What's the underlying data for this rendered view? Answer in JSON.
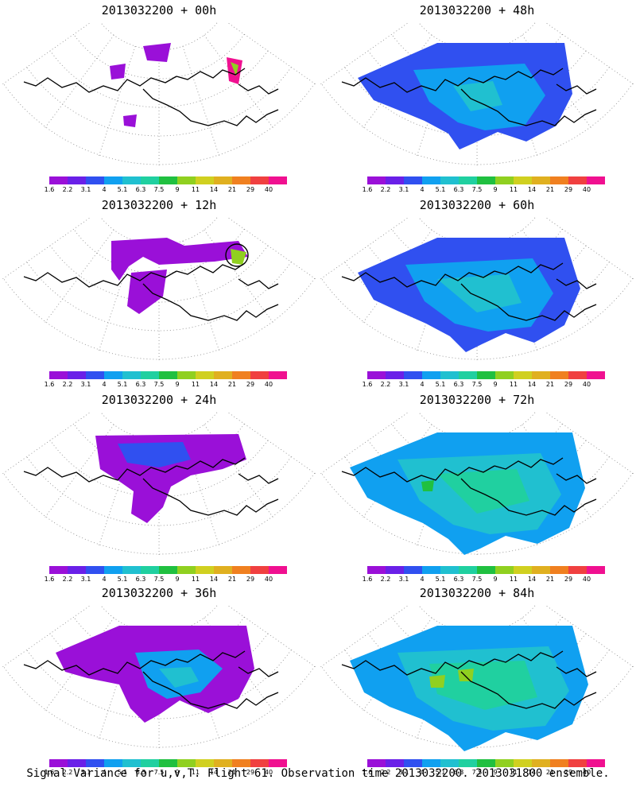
{
  "colorbar": {
    "labels": [
      "1.6",
      "2.2",
      "3.1",
      "4",
      "5.1",
      "6.3",
      "7.5",
      "9",
      "11",
      "14",
      "21",
      "29",
      "40"
    ],
    "colors": [
      "#9a10d8",
      "#6a20e8",
      "#3050f0",
      "#10a0f0",
      "#20c0d0",
      "#20d0a0",
      "#20c040",
      "#90d020",
      "#d0d020",
      "#e0b020",
      "#f08020",
      "#f04040",
      "#f01090"
    ]
  },
  "panels": [
    {
      "title": "2013032200 + 00h",
      "lead_hours": 0
    },
    {
      "title": "2013032200 + 48h",
      "lead_hours": 48
    },
    {
      "title": "2013032200 + 12h",
      "lead_hours": 12
    },
    {
      "title": "2013032200 + 60h",
      "lead_hours": 60
    },
    {
      "title": "2013032200 + 24h",
      "lead_hours": 24
    },
    {
      "title": "2013032200 + 72h",
      "lead_hours": 72
    },
    {
      "title": "2013032200 + 36h",
      "lead_hours": 36
    },
    {
      "title": "2013032200 + 84h",
      "lead_hours": 84
    }
  ],
  "footer": "Signal Variance for u,v,T. Flight 61. Observation time 2013032200. 2013031800 ensemble."
}
